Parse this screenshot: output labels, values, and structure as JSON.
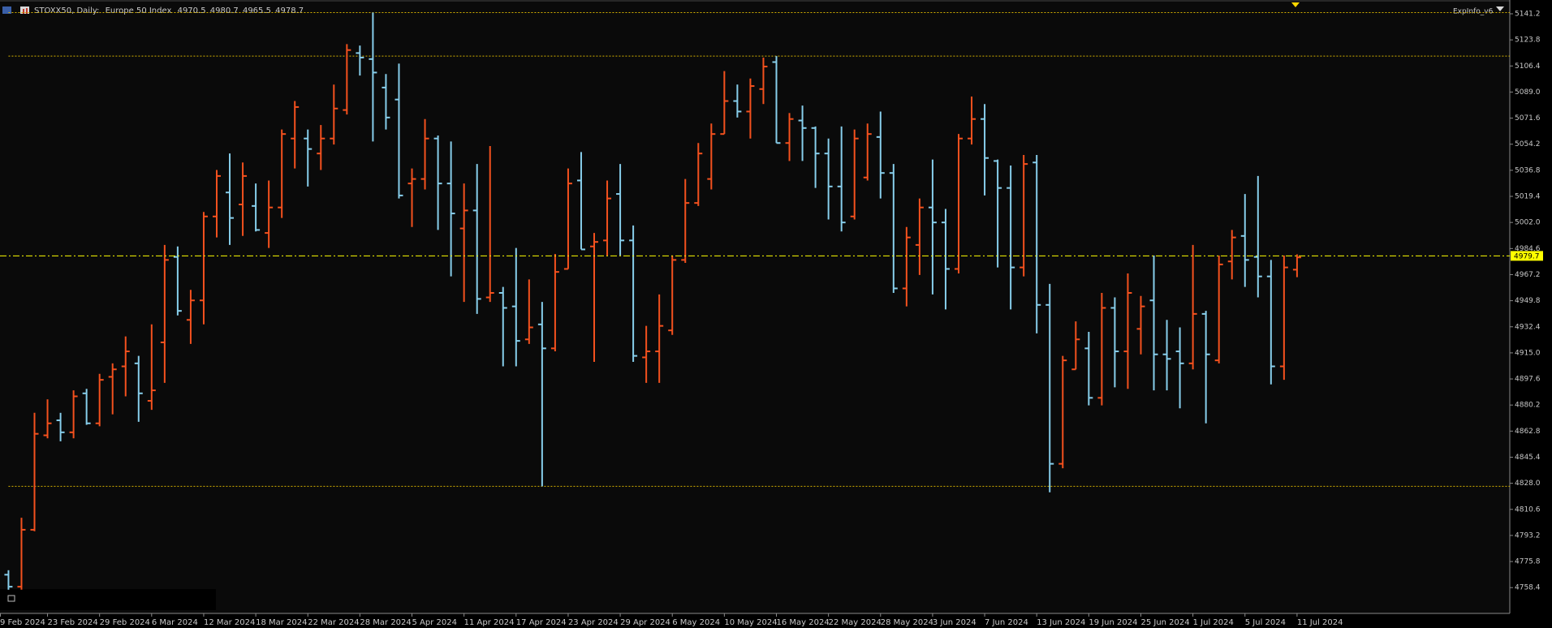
{
  "chart_data": {
    "type": "ohlc",
    "symbol": "STOXX50, Daily:",
    "description": "Europe 50 Index",
    "header_ohlc": [
      4970.5,
      4980.7,
      4965.5,
      4978.7
    ],
    "indicator_label": "ExpInfo_v6",
    "up_color": "#f4511e",
    "down_color": "#87ceeb",
    "level_color": "#d4b000",
    "current_price": 4979.7,
    "current_price_color": "#ffff00",
    "levels": [
      5142,
      5113,
      4826
    ],
    "ylim": [
      4741.2,
      5150.4
    ],
    "yticks": [
      4758.4,
      4775.8,
      4793.2,
      4810.6,
      {
        "value": 4828.0,
        "label": "4828.0"
      },
      4845.4,
      4862.8,
      4880.2,
      4897.6,
      {
        "value": 4915.0,
        "label": "4915.0"
      },
      4932.4,
      4949.8,
      4967.2,
      4984.6,
      {
        "value": 5002.0,
        "label": "5002.0"
      },
      5019.4,
      5036.8,
      5054.2,
      5071.6,
      {
        "value": 5089.0,
        "label": "5089.0"
      },
      5106.4,
      5123.8,
      5141.2
    ],
    "categories": [
      "9 Feb 2024",
      null,
      null,
      null,
      "23 Feb 2024",
      null,
      null,
      null,
      "29 Feb 2024",
      null,
      null,
      null,
      "6 Mar 2024",
      null,
      null,
      null,
      "12 Mar 2024",
      null,
      null,
      null,
      "18 Mar 2024",
      null,
      null,
      null,
      "22 Mar 2024",
      null,
      null,
      null,
      "28 Mar 2024",
      null,
      null,
      null,
      "5 Apr 2024",
      null,
      null,
      null,
      "11 Apr 2024",
      null,
      null,
      null,
      "17 Apr 2024",
      null,
      null,
      null,
      "23 Apr 2024",
      null,
      null,
      null,
      "29 Apr 2024",
      null,
      null,
      null,
      "6 May 2024",
      null,
      null,
      null,
      "10 May 2024",
      null,
      null,
      null,
      "16 May 2024",
      null,
      null,
      null,
      "22 May 2024",
      null,
      null,
      null,
      "28 May 2024",
      null,
      null,
      null,
      "3 Jun 2024",
      null,
      null,
      null,
      "7 Jun 2024",
      null,
      null,
      null,
      "13 Jun 2024",
      null,
      null,
      null,
      "19 Jun 2024",
      null,
      null,
      null,
      "25 Jun 2024",
      null,
      null,
      null,
      "1 Jul 2024",
      null,
      null,
      null,
      "5 Jul 2024",
      null,
      null,
      null,
      "11 Jul 2024"
    ],
    "open": [
      null,
      4767,
      4759,
      4797,
      4860,
      4870,
      4862,
      4888,
      4868,
      4899,
      4906,
      4908,
      4883,
      4922,
      4979,
      4937,
      4950,
      5006,
      5022,
      5014,
      5013,
      4995,
      5012,
      5058,
      5058,
      5048,
      5058,
      5077,
      5115,
      5111,
      5092,
      5084,
      5028,
      5031,
      5058,
      5028,
      4998,
      5010,
      4952,
      4955,
      4946,
      4924,
      4934,
      4918,
      4971,
      5030,
      4986,
      4990,
      5021,
      4990,
      4912,
      4916,
      4930,
      4977,
      5015,
      5031,
      5061,
      5083,
      5076,
      5091,
      5109,
      5055,
      5070,
      5065,
      5048,
      5026,
      5006,
      5032,
      5059,
      5035,
      4958,
      4987,
      5012,
      5002,
      4971,
      5058,
      5071,
      5043,
      5025,
      4972,
      5042,
      4947,
      4841,
      4904,
      4918,
      4885,
      4945,
      4916,
      4931,
      4950,
      4914,
      4916,
      4908,
      4941,
      4910,
      4976,
      4993,
      4979,
      4966,
      4906,
      4970.5
    ],
    "high": [
      null,
      4770,
      4805,
      4875,
      4884,
      4875,
      4890,
      4891,
      4901,
      4908,
      4926,
      4913,
      4934,
      4987,
      4986,
      4957,
      5009,
      5037,
      5048,
      5042,
      5028,
      5030,
      5064,
      5083,
      5064,
      5067,
      5094,
      5121,
      5120,
      5142,
      5101,
      5108,
      5038,
      5071,
      5060,
      5056,
      5028,
      5041,
      5053,
      4959,
      4985,
      4964,
      4949,
      4981,
      5038,
      5049,
      4995,
      5030,
      5041,
      5000,
      4933,
      4954,
      4980,
      5031,
      5055,
      5068,
      5103,
      5094,
      5098,
      5112,
      5113,
      5075,
      5080,
      5066,
      5058,
      5066,
      5064,
      5068,
      5076,
      5041,
      4999,
      5018,
      5044,
      5011,
      5061,
      5086,
      5081,
      5044,
      5040,
      5047,
      5047,
      4961,
      4913,
      4936,
      4929,
      4955,
      4952,
      4968,
      4953,
      4980,
      4937,
      4932,
      4987,
      4943,
      4980,
      4997,
      5021,
      5033,
      4977,
      4980,
      4980.7
    ],
    "low": [
      null,
      4757,
      4757,
      4796,
      4858,
      4856,
      4858,
      4867,
      4866,
      4874,
      4886,
      4869,
      4877,
      4895,
      4940,
      4921,
      4934,
      4992,
      4987,
      4993,
      4996,
      4985,
      5005,
      5038,
      5026,
      5037,
      5054,
      5074,
      5100,
      5056,
      5064,
      5018,
      4999,
      5024,
      4997,
      4966,
      4949,
      4941,
      4949,
      4906,
      4906,
      4921,
      4826,
      4916,
      4971,
      4984,
      4909,
      4980,
      4980,
      4909,
      4895,
      4895,
      4927,
      4975,
      5013,
      5024,
      5061,
      5072,
      5058,
      5081,
      5055,
      5043,
      5043,
      5025,
      5004,
      4996,
      5004,
      5030,
      5018,
      4955,
      4946,
      4967,
      4954,
      4944,
      4968,
      5054,
      5020,
      4972,
      4944,
      4966,
      4928,
      4822,
      4838,
      4904,
      4880,
      4880,
      4892,
      4891,
      4914,
      4890,
      4890,
      4878,
      4904,
      4868,
      4908,
      4964,
      4959,
      4952,
      4894,
      4897,
      4965.5
    ],
    "close": [
      null,
      4759,
      4797,
      4861,
      4868,
      4862,
      4886,
      4868,
      4897,
      4904,
      4916,
      4888,
      4890,
      4977,
      4943,
      4950,
      5006,
      5033,
      5005,
      5033,
      4997,
      5012,
      5061,
      5079,
      5051,
      5058,
      5078,
      5117,
      5112,
      5102,
      5072,
      5020,
      5031,
      5058,
      5028,
      5008,
      5010,
      4951,
      4955,
      4945,
      4923,
      4932,
      4918,
      4969,
      5028,
      4984,
      4989,
      5018,
      4990,
      4913,
      4916,
      4933,
      4977,
      5015,
      5048,
      5061,
      5083,
      5076,
      5093,
      5106,
      5055,
      5071,
      5065,
      5048,
      5026,
      5002,
      5058,
      5061,
      5035,
      4958,
      4992,
      5012,
      5002,
      4971,
      5058,
      5071,
      5045,
      5025,
      4972,
      5041,
      4947,
      4841,
      4910,
      4924,
      4885,
      4945,
      4916,
      4955,
      4946,
      4914,
      4911,
      4908,
      4941,
      4914,
      4974,
      4992,
      4977,
      4966,
      4906,
      4972,
      4978.7
    ]
  }
}
